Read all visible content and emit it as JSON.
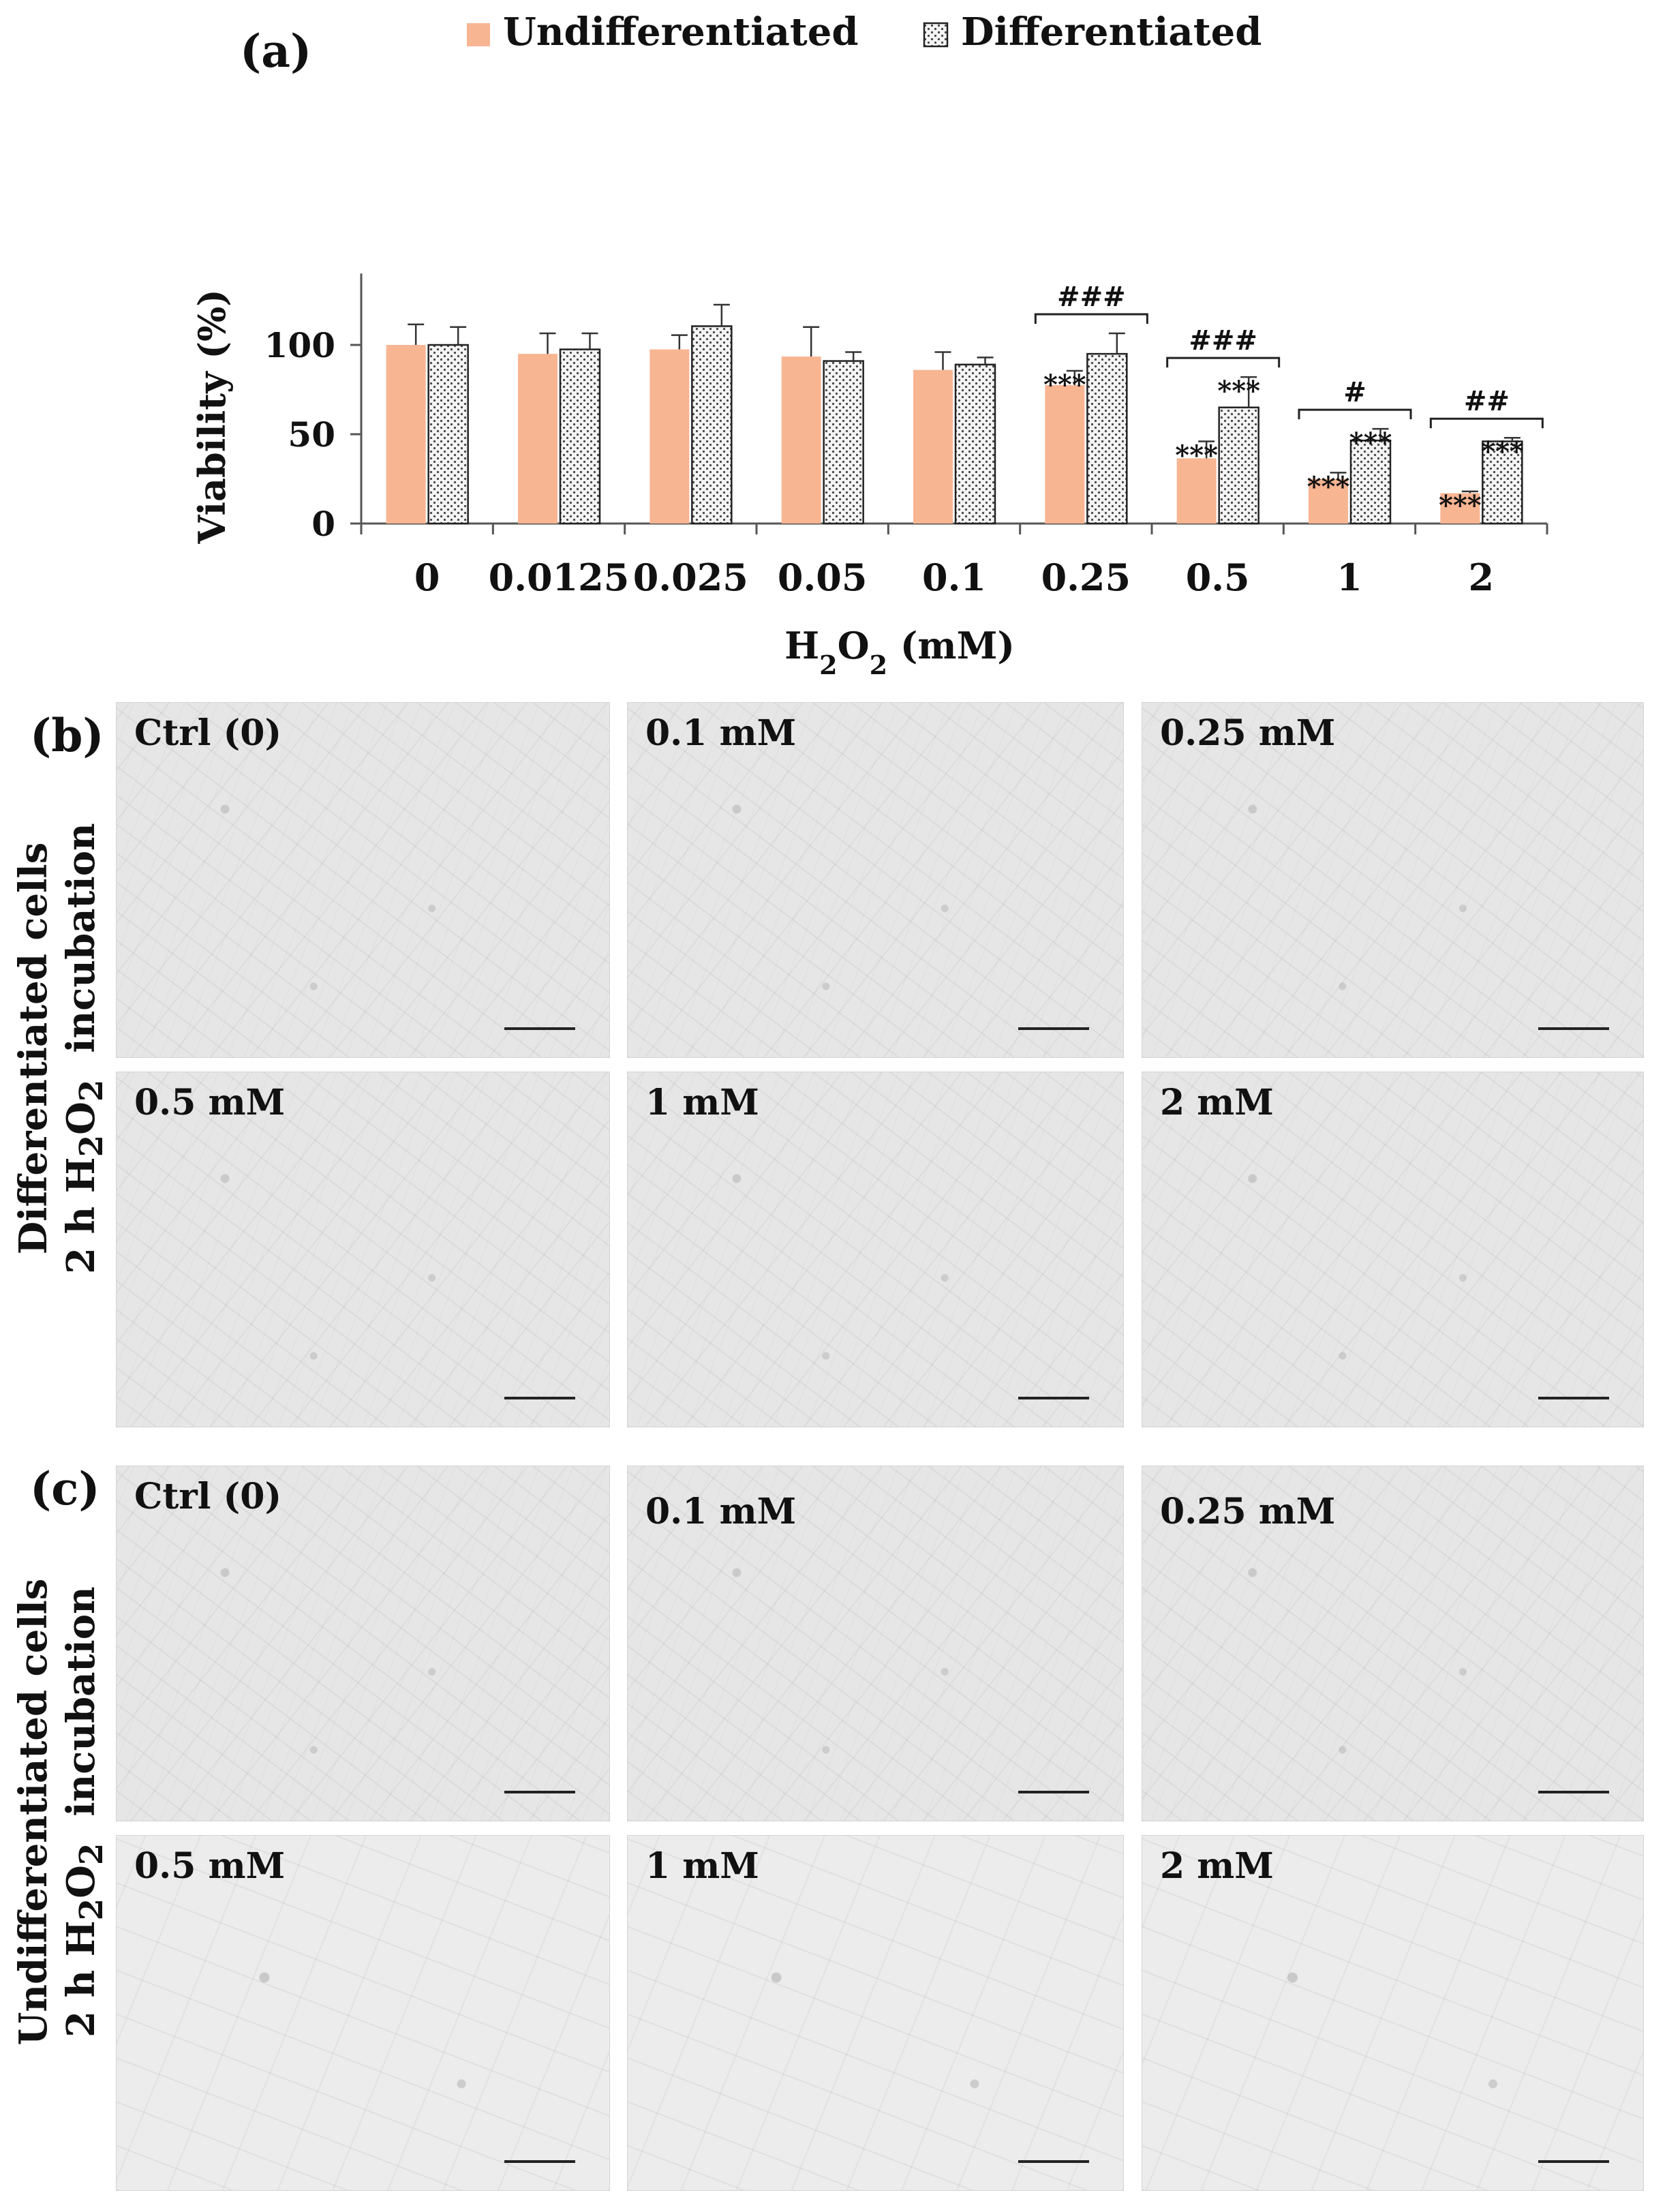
{
  "panels": {
    "a_label": "(a)",
    "b_label": "(b)",
    "c_label": "(c)"
  },
  "chart_data": {
    "type": "bar",
    "categories": [
      "0",
      "0.0125",
      "0.025",
      "0.05",
      "0.1",
      "0.25",
      "0.5",
      "1",
      "2"
    ],
    "series": [
      {
        "name": "Undifferentiated",
        "color": "#f8b592",
        "values": [
          100,
          95,
          97.5,
          93.5,
          86,
          77.5,
          36.5,
          25,
          17
        ],
        "errors": [
          11.5,
          11.5,
          8,
          16.5,
          10,
          8,
          9.5,
          3.5,
          1
        ]
      },
      {
        "name": "Differentiated",
        "pattern": "dotted",
        "values": [
          100,
          97.5,
          110.5,
          91,
          89,
          95,
          65,
          46.5,
          46
        ],
        "errors": [
          10,
          9,
          12,
          5,
          4,
          11.5,
          17,
          6.5,
          2
        ]
      }
    ],
    "significance": [
      {
        "category": "0.25",
        "undifferentiated": "***",
        "differentiated": "",
        "between": "###"
      },
      {
        "category": "0.5",
        "undifferentiated": "***",
        "differentiated": "***",
        "between": "###"
      },
      {
        "category": "1",
        "undifferentiated": "***",
        "differentiated": "***",
        "between": "#"
      },
      {
        "category": "2",
        "undifferentiated": "***",
        "differentiated": "***",
        "between": "##"
      }
    ],
    "ylabel": "Viability (%)",
    "xlabel_main": "H",
    "xlabel_sub1": "2",
    "xlabel_mid": "O",
    "xlabel_sub2": "2",
    "xlabel_unit": " (mM)",
    "ylim": [
      0,
      140
    ],
    "yticks": [
      0,
      50,
      100
    ],
    "grid": false,
    "legend_position": "top"
  },
  "micrographs": {
    "differentiated_label": "Differentiated cells",
    "differentiated_label2_prefix": "2 h H",
    "differentiated_label2_sub1": "2",
    "differentiated_label2_mid": "O",
    "differentiated_label2_sub2": "2",
    "differentiated_label2_suffix": "  incubation",
    "undifferentiated_label": "Undifferentiated cells",
    "undifferentiated_label2_prefix": "2 h H",
    "undifferentiated_label2_sub1": "2",
    "undifferentiated_label2_mid": "O",
    "undifferentiated_label2_sub2": "2",
    "undifferentiated_label2_suffix": "  incubation",
    "differentiated": [
      "Ctrl (0)",
      "0.1 mM",
      "0.25 mM",
      "0.5 mM",
      "1 mM",
      "2 mM"
    ],
    "undifferentiated": [
      "Ctrl (0)",
      "0.1 mM",
      "0.25 mM",
      "0.5 mM",
      "1 mM",
      "2 mM"
    ]
  }
}
